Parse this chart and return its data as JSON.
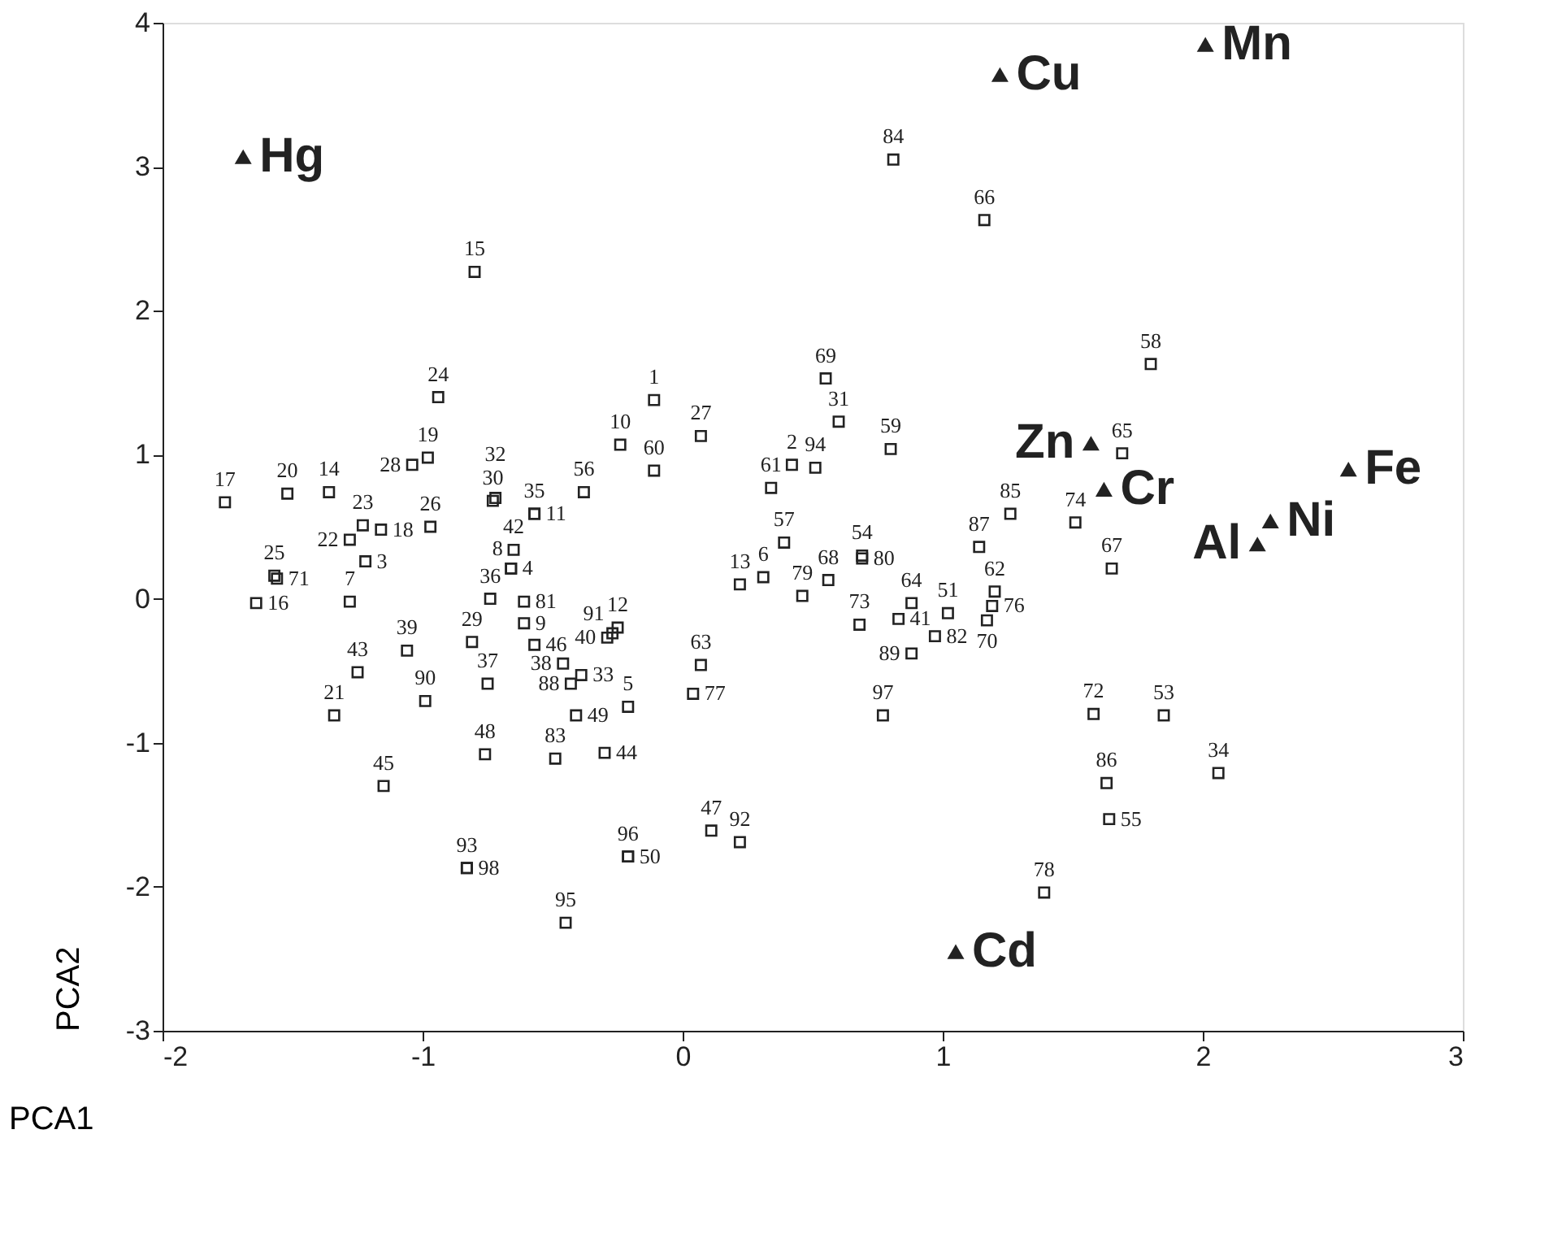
{
  "chart_data": {
    "type": "scatter",
    "xlabel": "PCA1",
    "ylabel": "PCA2",
    "xlim": [
      -2,
      3
    ],
    "ylim": [
      -3,
      4
    ],
    "xticks": [
      -2,
      -1,
      0,
      1,
      2,
      3
    ],
    "yticks": [
      -3,
      -2,
      -1,
      0,
      1,
      2,
      3,
      4
    ],
    "grid": false,
    "series": [
      {
        "color": "#222222",
        "marker": "square",
        "x": [
          -1.76,
          -1.52,
          -1.36,
          -1.28,
          -1.23,
          -1.16,
          -1.04,
          -0.98,
          -0.94,
          -0.97,
          -1.57,
          -1.56,
          -1.64,
          -1.22,
          -1.28,
          -1.06,
          -1.25,
          -1.34,
          -0.99,
          -1.15,
          -0.74,
          -0.81,
          -0.75,
          -0.76,
          -0.83,
          -0.83,
          -0.61,
          -0.61,
          -0.57,
          -0.66,
          -0.66,
          -0.65,
          -0.73,
          -0.72,
          -0.57,
          -0.57,
          -0.38,
          -0.24,
          -0.11,
          -0.11,
          0.07,
          -0.46,
          -0.29,
          -0.27,
          -0.25,
          -0.39,
          -0.43,
          -0.41,
          -0.49,
          -0.3,
          -0.21,
          -0.21,
          -0.21,
          -0.45,
          -0.8,
          0.22,
          0.31,
          0.07,
          0.04,
          0.11,
          0.22,
          0.55,
          0.6,
          0.42,
          0.51,
          0.34,
          0.8,
          0.39,
          0.69,
          0.69,
          0.56,
          0.46,
          0.68,
          0.88,
          0.83,
          1.02,
          0.97,
          0.88,
          1.14,
          1.26,
          1.2,
          1.19,
          1.17,
          1.51,
          1.65,
          1.69,
          1.8,
          0.81,
          1.16,
          0.77,
          1.58,
          1.85,
          2.06,
          1.63,
          1.64,
          1.39
        ],
        "values": [
          0.67,
          0.73,
          0.74,
          0.41,
          0.51,
          0.48,
          0.93,
          0.98,
          1.4,
          0.5,
          0.16,
          0.14,
          -0.03,
          0.26,
          -0.02,
          -0.36,
          -0.51,
          -0.81,
          -0.71,
          -1.3,
          0.0,
          -0.3,
          -0.59,
          -1.08,
          -1.87,
          -1.87,
          -0.02,
          -0.17,
          -0.32,
          0.21,
          0.21,
          0.34,
          0.68,
          0.7,
          0.59,
          0.59,
          0.74,
          1.07,
          1.38,
          0.89,
          1.13,
          -0.45,
          -0.27,
          -0.24,
          -0.2,
          -0.53,
          -0.59,
          -0.81,
          -1.11,
          -1.07,
          -0.75,
          -1.79,
          -1.79,
          -2.25,
          2.27,
          0.1,
          0.15,
          -0.46,
          -0.66,
          -1.61,
          -1.69,
          1.53,
          1.23,
          0.93,
          0.91,
          0.77,
          1.04,
          0.39,
          0.3,
          0.28,
          0.13,
          0.02,
          -0.18,
          -0.03,
          -0.14,
          -0.1,
          -0.26,
          -0.38,
          0.36,
          0.59,
          0.05,
          -0.05,
          -0.15,
          0.53,
          0.21,
          1.01,
          1.63,
          3.05,
          2.63,
          -0.81,
          -0.8,
          -0.81,
          -1.21,
          -1.28,
          -1.53,
          -2.04
        ]
      },
      {
        "color": "#222222",
        "marker": "triangle",
        "x": [
          -1.69,
          1.22,
          2.01,
          1.57,
          1.62,
          2.56,
          2.26,
          2.21,
          1.05
        ],
        "values": [
          3.07,
          3.64,
          3.85,
          1.08,
          0.76,
          0.9,
          0.54,
          0.38,
          -2.45
        ]
      }
    ],
    "annotations": [
      {
        "text": "17",
        "x": -1.76,
        "y": 0.67
      },
      {
        "text": "20",
        "x": -1.52,
        "y": 0.73
      },
      {
        "text": "14",
        "x": -1.36,
        "y": 0.74
      },
      {
        "text": "22",
        "x": -1.28,
        "y": 0.41
      },
      {
        "text": "23",
        "x": -1.23,
        "y": 0.51
      },
      {
        "text": "18",
        "x": -1.16,
        "y": 0.48
      },
      {
        "text": "28",
        "x": -1.04,
        "y": 0.93
      },
      {
        "text": "19",
        "x": -0.98,
        "y": 0.98
      },
      {
        "text": "24",
        "x": -0.94,
        "y": 1.4
      },
      {
        "text": "26",
        "x": -0.97,
        "y": 0.5
      },
      {
        "text": "25",
        "x": -1.57,
        "y": 0.16
      },
      {
        "text": "71",
        "x": -1.56,
        "y": 0.14
      },
      {
        "text": "16",
        "x": -1.64,
        "y": -0.03
      },
      {
        "text": "3",
        "x": -1.22,
        "y": 0.26
      },
      {
        "text": "7",
        "x": -1.28,
        "y": -0.02
      },
      {
        "text": "39",
        "x": -1.06,
        "y": -0.36
      },
      {
        "text": "43",
        "x": -1.25,
        "y": -0.51
      },
      {
        "text": "21",
        "x": -1.34,
        "y": -0.81
      },
      {
        "text": "90",
        "x": -0.99,
        "y": -0.71
      },
      {
        "text": "45",
        "x": -1.15,
        "y": -1.3
      },
      {
        "text": "36",
        "x": -0.74,
        "y": 0.0
      },
      {
        "text": "29",
        "x": -0.81,
        "y": -0.3
      },
      {
        "text": "37",
        "x": -0.75,
        "y": -0.59
      },
      {
        "text": "48",
        "x": -0.76,
        "y": -1.08
      },
      {
        "text": "93",
        "x": -0.83,
        "y": -1.87
      },
      {
        "text": "98",
        "x": -0.83,
        "y": -1.87
      },
      {
        "text": "81",
        "x": -0.61,
        "y": -0.02
      },
      {
        "text": "9",
        "x": -0.61,
        "y": -0.17
      },
      {
        "text": "46",
        "x": -0.57,
        "y": -0.32
      },
      {
        "text": "4",
        "x": -0.66,
        "y": 0.21
      },
      {
        "text": "8",
        "x": -0.66,
        "y": 0.21
      },
      {
        "text": "42",
        "x": -0.65,
        "y": 0.34
      },
      {
        "text": "30",
        "x": -0.73,
        "y": 0.68
      },
      {
        "text": "32",
        "x": -0.72,
        "y": 0.7
      },
      {
        "text": "35",
        "x": -0.57,
        "y": 0.59
      },
      {
        "text": "11",
        "x": -0.57,
        "y": 0.59
      },
      {
        "text": "56",
        "x": -0.38,
        "y": 0.74
      },
      {
        "text": "10",
        "x": -0.24,
        "y": 1.07
      },
      {
        "text": "1",
        "x": -0.11,
        "y": 1.38
      },
      {
        "text": "60",
        "x": -0.11,
        "y": 0.89
      },
      {
        "text": "27",
        "x": 0.07,
        "y": 1.13
      },
      {
        "text": "38",
        "x": -0.46,
        "y": -0.45
      },
      {
        "text": "40",
        "x": -0.29,
        "y": -0.27
      },
      {
        "text": "91",
        "x": -0.27,
        "y": -0.24
      },
      {
        "text": "12",
        "x": -0.25,
        "y": -0.2
      },
      {
        "text": "33",
        "x": -0.39,
        "y": -0.53
      },
      {
        "text": "88",
        "x": -0.43,
        "y": -0.59
      },
      {
        "text": "49",
        "x": -0.41,
        "y": -0.81
      },
      {
        "text": "83",
        "x": -0.49,
        "y": -1.11
      },
      {
        "text": "44",
        "x": -0.3,
        "y": -1.07
      },
      {
        "text": "5",
        "x": -0.21,
        "y": -0.75
      },
      {
        "text": "96",
        "x": -0.21,
        "y": -1.79
      },
      {
        "text": "50",
        "x": -0.21,
        "y": -1.79
      },
      {
        "text": "95",
        "x": -0.45,
        "y": -2.25
      },
      {
        "text": "15",
        "x": -0.8,
        "y": 2.27
      },
      {
        "text": "13",
        "x": 0.22,
        "y": 0.1
      },
      {
        "text": "6",
        "x": 0.31,
        "y": 0.15
      },
      {
        "text": "63",
        "x": 0.07,
        "y": -0.46
      },
      {
        "text": "77",
        "x": 0.04,
        "y": -0.66
      },
      {
        "text": "47",
        "x": 0.11,
        "y": -1.61
      },
      {
        "text": "92",
        "x": 0.22,
        "y": -1.69
      },
      {
        "text": "69",
        "x": 0.55,
        "y": 1.53
      },
      {
        "text": "31",
        "x": 0.6,
        "y": 1.23
      },
      {
        "text": "2",
        "x": 0.42,
        "y": 0.93
      },
      {
        "text": "94",
        "x": 0.51,
        "y": 0.91
      },
      {
        "text": "61",
        "x": 0.34,
        "y": 0.77
      },
      {
        "text": "59",
        "x": 0.8,
        "y": 1.04
      },
      {
        "text": "57",
        "x": 0.39,
        "y": 0.39
      },
      {
        "text": "54",
        "x": 0.69,
        "y": 0.3
      },
      {
        "text": "80",
        "x": 0.69,
        "y": 0.28
      },
      {
        "text": "68",
        "x": 0.56,
        "y": 0.13
      },
      {
        "text": "79",
        "x": 0.46,
        "y": 0.02
      },
      {
        "text": "73",
        "x": 0.68,
        "y": -0.18
      },
      {
        "text": "64",
        "x": 0.88,
        "y": -0.03
      },
      {
        "text": "41",
        "x": 0.83,
        "y": -0.14
      },
      {
        "text": "51",
        "x": 1.02,
        "y": -0.1
      },
      {
        "text": "82",
        "x": 0.97,
        "y": -0.26
      },
      {
        "text": "89",
        "x": 0.88,
        "y": -0.38
      },
      {
        "text": "87",
        "x": 1.14,
        "y": 0.36
      },
      {
        "text": "85",
        "x": 1.26,
        "y": 0.59
      },
      {
        "text": "62",
        "x": 1.2,
        "y": 0.05
      },
      {
        "text": "76",
        "x": 1.19,
        "y": -0.05
      },
      {
        "text": "70",
        "x": 1.17,
        "y": -0.15
      },
      {
        "text": "74",
        "x": 1.51,
        "y": 0.53
      },
      {
        "text": "67",
        "x": 1.65,
        "y": 0.21
      },
      {
        "text": "65",
        "x": 1.69,
        "y": 1.01
      },
      {
        "text": "58",
        "x": 1.8,
        "y": 1.63
      },
      {
        "text": "84",
        "x": 0.81,
        "y": 3.05
      },
      {
        "text": "66",
        "x": 1.16,
        "y": 2.63
      },
      {
        "text": "97",
        "x": 0.77,
        "y": -0.81
      },
      {
        "text": "72",
        "x": 1.58,
        "y": -0.8
      },
      {
        "text": "53",
        "x": 1.85,
        "y": -0.81
      },
      {
        "text": "34",
        "x": 2.06,
        "y": -1.21
      },
      {
        "text": "86",
        "x": 1.63,
        "y": -1.28
      },
      {
        "text": "55",
        "x": 1.64,
        "y": -1.53
      },
      {
        "text": "78",
        "x": 1.39,
        "y": -2.04
      },
      {
        "text": "Hg",
        "x": -1.69,
        "y": 3.07
      },
      {
        "text": "Cu",
        "x": 1.22,
        "y": 3.64
      },
      {
        "text": "Mn",
        "x": 2.01,
        "y": 3.85
      },
      {
        "text": "Zn",
        "x": 1.57,
        "y": 1.08
      },
      {
        "text": "Cr",
        "x": 1.62,
        "y": 0.76
      },
      {
        "text": "Fe",
        "x": 2.56,
        "y": 0.9
      },
      {
        "text": "Ni",
        "x": 2.26,
        "y": 0.54
      },
      {
        "text": "Al",
        "x": 2.21,
        "y": 0.38
      },
      {
        "text": "Cd",
        "x": 1.05,
        "y": -2.45
      }
    ]
  }
}
